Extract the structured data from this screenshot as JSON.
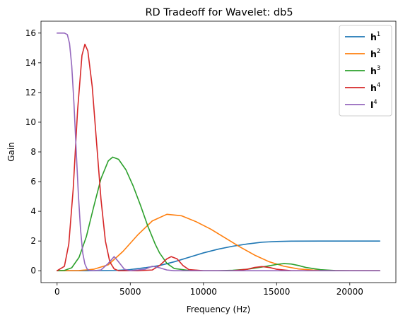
{
  "chart_data": {
    "type": "line",
    "title": "RD Tradeoff for Wavelet: db5",
    "xlabel": "Frequency (Hz)",
    "ylabel": "Gain",
    "xlim": [
      -1100,
      23150
    ],
    "ylim": [
      -0.8,
      16.8
    ],
    "xticks": [
      0,
      5000,
      10000,
      15000,
      20000
    ],
    "yticks": [
      0,
      2,
      4,
      6,
      8,
      10,
      12,
      14,
      16
    ],
    "grid": false,
    "legend_position": "top-right",
    "series": [
      {
        "name": "h",
        "superscript": "1",
        "color": "#1f77b4",
        "x": [
          0,
          2000,
          4000,
          5000,
          6000,
          7000,
          8000,
          9000,
          10000,
          11000,
          12000,
          13000,
          14000,
          15000,
          16000,
          18000,
          20000,
          22050
        ],
        "y": [
          0,
          0.0,
          0.02,
          0.08,
          0.2,
          0.35,
          0.6,
          0.9,
          1.2,
          1.45,
          1.65,
          1.8,
          1.92,
          1.97,
          1.99,
          2.0,
          2.0,
          2.0
        ]
      },
      {
        "name": "h",
        "superscript": "2",
        "color": "#ff7f0e",
        "x": [
          0,
          1500,
          2500,
          3500,
          4500,
          5500,
          6500,
          7500,
          8500,
          9500,
          10500,
          11500,
          12500,
          13500,
          14500,
          15500,
          16500,
          17500,
          18500,
          19500,
          22050
        ],
        "y": [
          0,
          0.01,
          0.1,
          0.4,
          1.3,
          2.4,
          3.35,
          3.8,
          3.7,
          3.3,
          2.8,
          2.2,
          1.6,
          1.05,
          0.6,
          0.3,
          0.12,
          0.04,
          0.01,
          0.0,
          0.0
        ]
      },
      {
        "name": "h",
        "superscript": "3",
        "color": "#2ca02c",
        "x": [
          0,
          500,
          1000,
          1500,
          2000,
          2500,
          3000,
          3500,
          3800,
          4200,
          4700,
          5200,
          5700,
          6200,
          6700,
          7000,
          7500,
          8000,
          9000,
          10000,
          11000,
          12000,
          13000,
          14000,
          15000,
          15500,
          16000,
          16500,
          17000,
          18000,
          19000,
          20000,
          22050
        ],
        "y": [
          0,
          0.02,
          0.2,
          0.9,
          2.3,
          4.3,
          6.2,
          7.4,
          7.65,
          7.5,
          6.8,
          5.7,
          4.4,
          3.0,
          1.8,
          1.2,
          0.5,
          0.15,
          0.02,
          0.0,
          0.0,
          0.03,
          0.1,
          0.25,
          0.42,
          0.48,
          0.45,
          0.35,
          0.22,
          0.07,
          0.01,
          0.0,
          0.0
        ]
      },
      {
        "name": "h",
        "superscript": "4",
        "color": "#d62728",
        "x": [
          0,
          500,
          800,
          1100,
          1400,
          1700,
          1900,
          2100,
          2400,
          2700,
          3000,
          3300,
          3600,
          3900,
          4200,
          4700,
          5500,
          6500,
          7000,
          7500,
          7800,
          8200,
          8600,
          9000,
          10000,
          12000,
          13000,
          13500,
          14000,
          14500,
          15000,
          16000,
          22050
        ],
        "y": [
          0,
          0.3,
          1.8,
          5.5,
          10.8,
          14.5,
          15.25,
          14.8,
          12.4,
          8.6,
          4.8,
          2.0,
          0.6,
          0.12,
          0.0,
          0.0,
          0.0,
          0.05,
          0.35,
          0.8,
          0.95,
          0.8,
          0.35,
          0.08,
          0.0,
          0.0,
          0.1,
          0.22,
          0.28,
          0.22,
          0.1,
          0.0,
          0.0
        ]
      },
      {
        "name": "l",
        "superscript": "4",
        "color": "#9467bd",
        "x": [
          0,
          300,
          500,
          700,
          850,
          1000,
          1150,
          1300,
          1450,
          1600,
          1750,
          1900,
          2050,
          2200,
          2500,
          3000,
          3500,
          3900,
          4200,
          4600,
          5000,
          6000,
          6500,
          7000,
          7500,
          8000,
          22050
        ],
        "y": [
          16,
          16,
          16,
          15.9,
          15.3,
          13.8,
          11.3,
          8.2,
          5.2,
          2.8,
          1.2,
          0.45,
          0.12,
          0.03,
          0.0,
          0.05,
          0.5,
          0.95,
          0.6,
          0.1,
          0.0,
          0.1,
          0.3,
          0.2,
          0.05,
          0.0,
          0.0
        ]
      }
    ]
  }
}
